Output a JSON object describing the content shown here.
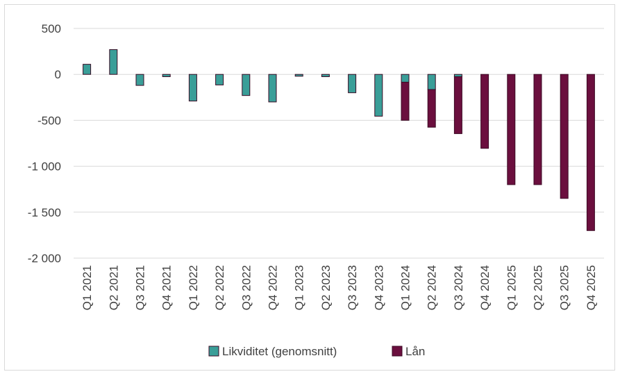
{
  "chart_data": {
    "type": "bar",
    "stacked": true,
    "categories": [
      "Q1 2021",
      "Q2 2021",
      "Q3 2021",
      "Q4 2021",
      "Q1 2022",
      "Q2 2022",
      "Q3 2022",
      "Q4 2022",
      "Q1 2023",
      "Q2 2023",
      "Q3 2023",
      "Q4 2023",
      "Q1 2024",
      "Q2 2024",
      "Q3 2024",
      "Q4 2024",
      "Q1 2025",
      "Q2 2025",
      "Q3 2025",
      "Q4 2025"
    ],
    "series": [
      {
        "name": "Likviditet (genomsnitt)",
        "color": "#3a9e98",
        "values": [
          110,
          270,
          -120,
          -25,
          -290,
          -115,
          -230,
          -300,
          -20,
          -25,
          -200,
          -455,
          -85,
          -165,
          -25,
          0,
          0,
          0,
          0,
          0
        ]
      },
      {
        "name": "Lån",
        "color": "#6b0f3e",
        "values": [
          0,
          0,
          0,
          0,
          0,
          0,
          0,
          0,
          0,
          0,
          0,
          0,
          -415,
          -410,
          -620,
          -805,
          -1200,
          -1200,
          -1350,
          -1700
        ]
      }
    ],
    "ylim": [
      -2000,
      500
    ],
    "yticks": [
      500,
      0,
      -500,
      -1000,
      -1500,
      -2000
    ],
    "ytick_labels": [
      "500",
      "0",
      "-500",
      "-1 000",
      "-1 500",
      "-2 000"
    ],
    "grid": true,
    "legend": "bottom"
  }
}
